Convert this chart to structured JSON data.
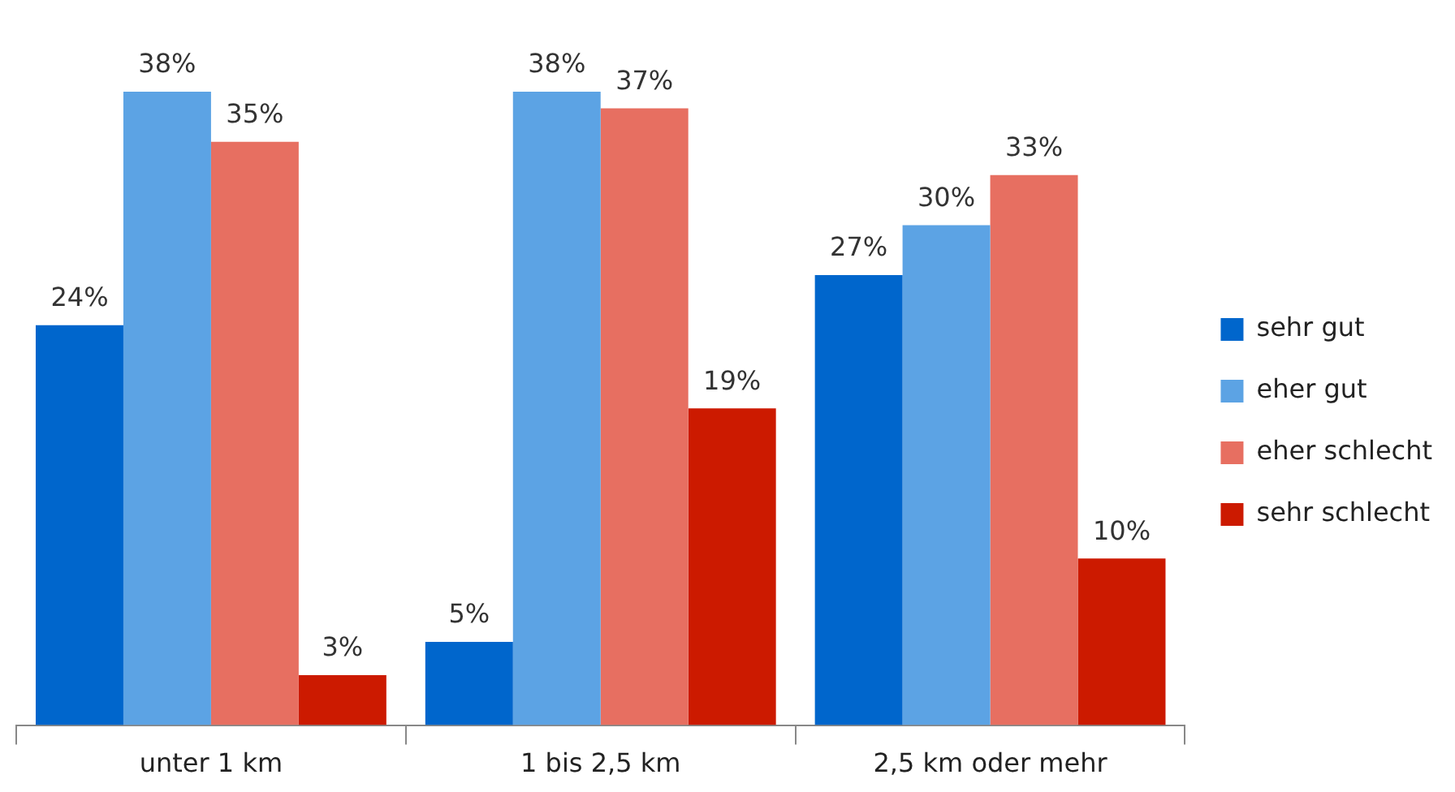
{
  "chart_data": {
    "type": "bar",
    "categories": [
      "unter 1 km",
      "1 bis 2,5 km",
      "2,5 km oder mehr"
    ],
    "series": [
      {
        "name": "sehr gut",
        "color": "#0066cc",
        "values": [
          24,
          5,
          27
        ],
        "value_labels": [
          "24%",
          "5%",
          "27%"
        ]
      },
      {
        "name": "eher gut",
        "color": "#5ca3e4",
        "values": [
          38,
          38,
          30
        ],
        "value_labels": [
          "38%",
          "38%",
          "30%"
        ]
      },
      {
        "name": "eher schlecht",
        "color": "#e76f61",
        "values": [
          35,
          37,
          33
        ],
        "value_labels": [
          "35%",
          "37%",
          "33%"
        ]
      },
      {
        "name": "sehr schlecht",
        "color": "#cc1a00",
        "values": [
          3,
          19,
          10
        ],
        "value_labels": [
          "3%",
          "19%",
          "10%"
        ]
      }
    ],
    "legend": "right",
    "tick_labels": "x"
  }
}
